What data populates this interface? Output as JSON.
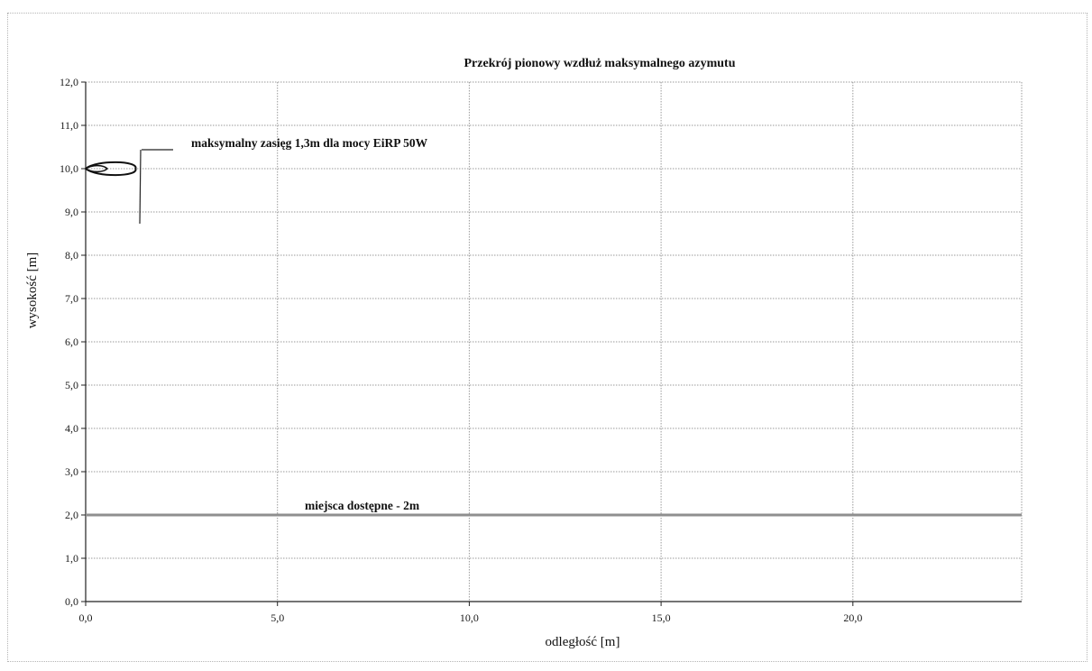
{
  "chart_data": {
    "type": "line",
    "title": "Przekrój pionowy wzdłuż maksymalnego azymutu",
    "xlabel": "odległość [m]",
    "ylabel": "wysokość  [m]",
    "xlim": [
      0,
      24.4
    ],
    "ylim": [
      0,
      12
    ],
    "x_ticks": [
      "0,0",
      "5,0",
      "10,0",
      "15,0",
      "20,0"
    ],
    "x_tick_values": [
      0,
      5,
      10,
      15,
      20
    ],
    "y_ticks": [
      "0,0",
      "1,0",
      "2,0",
      "3,0",
      "4,0",
      "5,0",
      "6,0",
      "7,0",
      "8,0",
      "9,0",
      "10,0",
      "11,0",
      "12,0"
    ],
    "y_tick_values": [
      0,
      1,
      2,
      3,
      4,
      5,
      6,
      7,
      8,
      9,
      10,
      11,
      12
    ],
    "grid": true,
    "series": [
      {
        "x": [
          0,
          24.4
        ],
        "y": [
          2.0,
          2.0
        ],
        "color": "#8f8f8f"
      }
    ],
    "lobe": {
      "x_max": 1.3,
      "y_center": 10.0,
      "color": "#111111"
    },
    "annotations": [
      {
        "text": "maksymalny zasięg 1,3m dla mocy EiRP 50W",
        "x": 2.7,
        "y": 10.3
      },
      {
        "text": "miejsca dostępne - 2m",
        "x": 5.8,
        "y": 2.4
      }
    ]
  }
}
